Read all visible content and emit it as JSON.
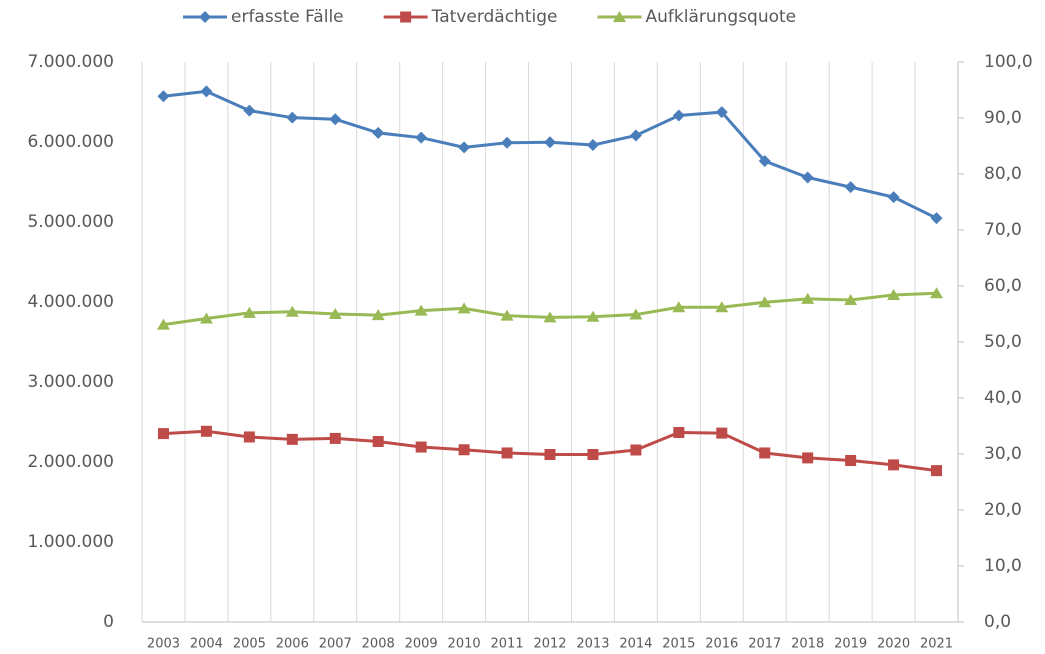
{
  "chart_data": {
    "type": "line",
    "categories": [
      "2003",
      "2004",
      "2005",
      "2006",
      "2007",
      "2008",
      "2009",
      "2010",
      "2011",
      "2012",
      "2013",
      "2014",
      "2015",
      "2016",
      "2017",
      "2018",
      "2019",
      "2020",
      "2021"
    ],
    "series": [
      {
        "name": "erfasste Fälle",
        "color": "#4a7ebb",
        "marker": "diamond",
        "values": [
          6572000,
          6633000,
          6392000,
          6304000,
          6285000,
          6114000,
          6054000,
          5933000,
          5991000,
          5997000,
          5962000,
          6082000,
          6331000,
          6373000,
          5762000,
          5556000,
          5436000,
          5311000,
          5048000
        ]
      },
      {
        "name": "Tatverdächtige",
        "color": "#be4b48",
        "marker": "square",
        "values": [
          2355000,
          2384000,
          2313000,
          2283000,
          2295000,
          2256000,
          2187000,
          2153000,
          2113000,
          2094000,
          2094000,
          2150000,
          2369000,
          2361000,
          2113000,
          2051000,
          2019000,
          1964000,
          1892000
        ]
      },
      {
        "name": "Aufklärungsquote",
        "color": "#98b954",
        "marker": "triangle",
        "axis": "y2",
        "values": [
          53.1,
          54.2,
          55.2,
          55.4,
          55.0,
          54.8,
          55.6,
          56.0,
          54.7,
          54.4,
          54.5,
          54.9,
          56.2,
          56.2,
          57.1,
          57.7,
          57.5,
          58.4,
          58.7
        ]
      }
    ],
    "ylim": [
      0,
      7000000
    ],
    "yticks": [
      0,
      {
        "value": 1000000,
        "label": "1.000.000"
      },
      {
        "value": 2000000,
        "label": "2.000.000"
      },
      {
        "value": 3000000,
        "label": "3.000.000"
      },
      {
        "value": 4000000,
        "label": "4.000.000"
      },
      {
        "value": 5000000,
        "label": "5.000.000"
      },
      {
        "value": 6000000,
        "label": "6.000.000"
      },
      {
        "value": 7000000,
        "label": "7.000.000"
      }
    ],
    "y2lim": [
      0,
      100
    ],
    "y2ticks": [
      {
        "value": 0,
        "label": "0,0"
      },
      {
        "value": 10,
        "label": "10,0"
      },
      {
        "value": 20,
        "label": "20,0"
      },
      {
        "value": 30,
        "label": "30,0"
      },
      {
        "value": 40,
        "label": "40,0"
      },
      {
        "value": 50,
        "label": "50,0"
      },
      {
        "value": 60,
        "label": "60,0"
      },
      {
        "value": 70,
        "label": "70,0"
      },
      {
        "value": 80,
        "label": "80,0"
      },
      {
        "value": 90,
        "label": "90,0"
      },
      {
        "value": 100,
        "label": "100,0"
      }
    ],
    "legend": "top"
  }
}
